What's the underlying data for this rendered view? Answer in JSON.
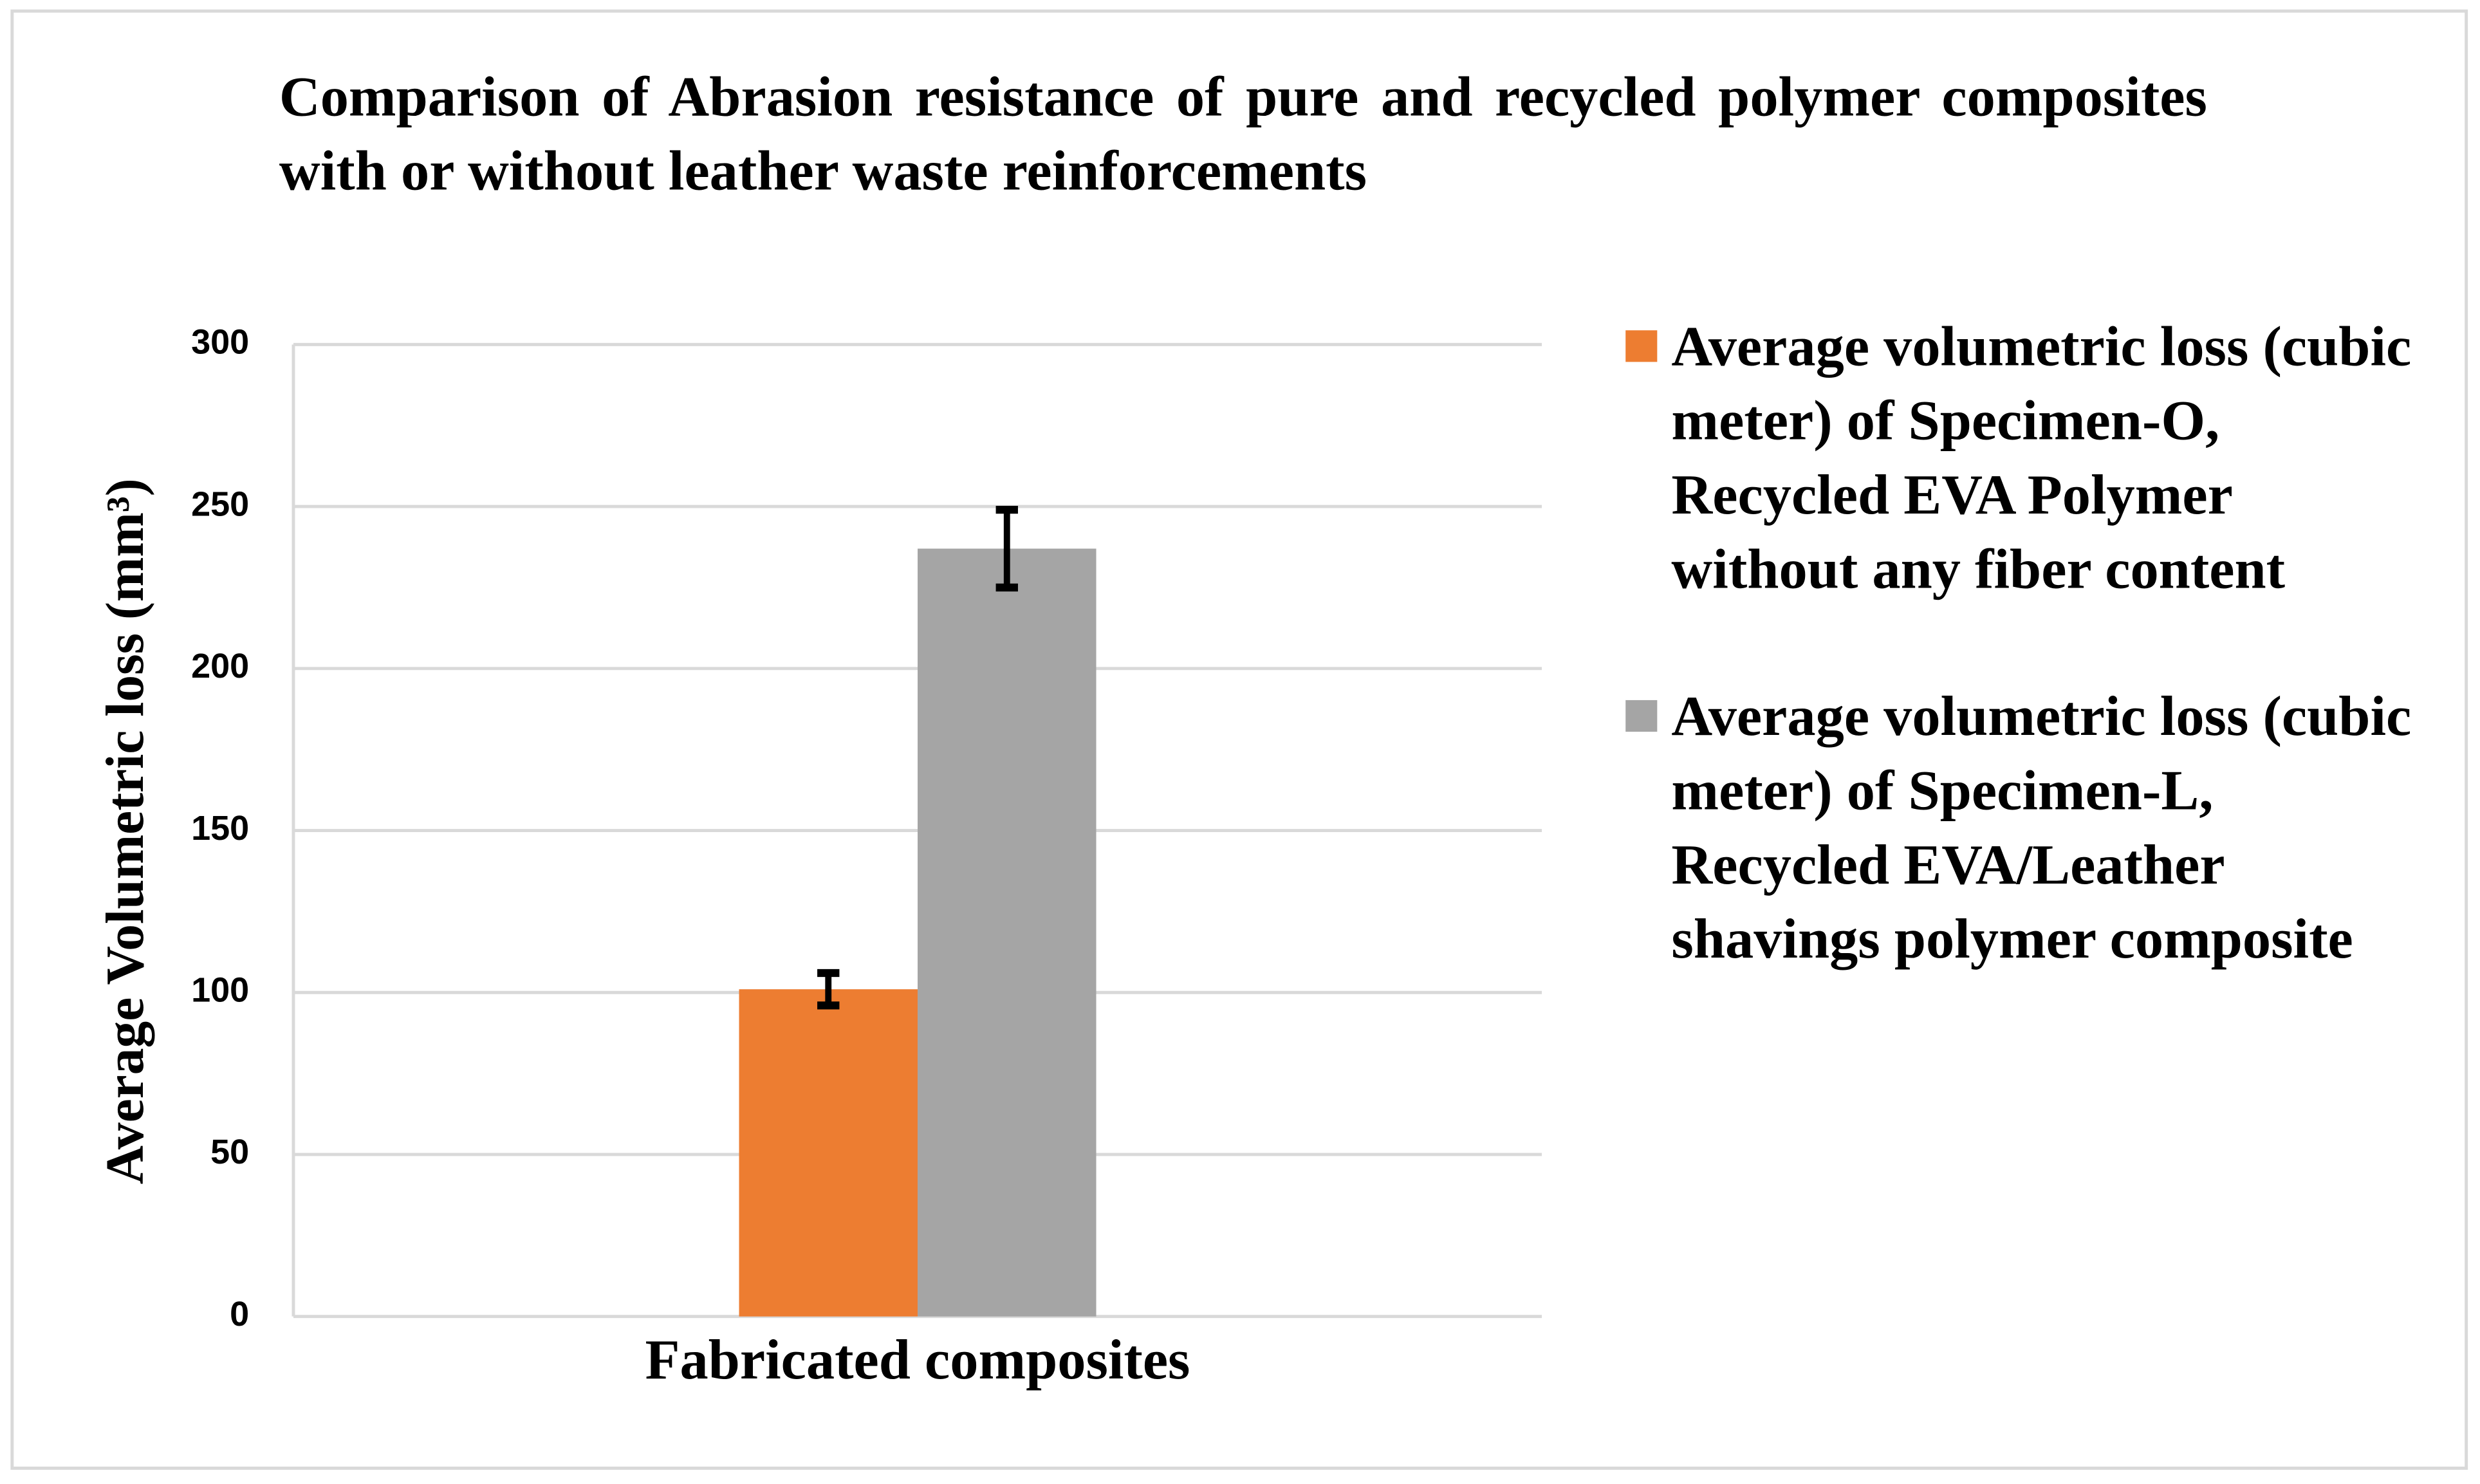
{
  "chart_data": {
    "type": "bar",
    "title": "Comparison of Abrasion resistance of pure and recycled polymer composites with or without leather waste reinforcements",
    "y_label": "Average Volumetric loss (mm³)",
    "categories": [
      "Fabricated composites"
    ],
    "series": [
      {
        "name": "Average volumetric loss (cubic meter) of Specimen-O, Recycled EVA Polymer without any fiber content",
        "color": "#ed7d31",
        "values": [
          101
        ],
        "errors": [
          5
        ]
      },
      {
        "name": "Average volumetric loss (cubic meter) of Specimen-L, Recycled EVA/Leather shavings polymer composite",
        "color": "#a5a5a5",
        "values": [
          237
        ],
        "errors": [
          12
        ]
      }
    ],
    "ylim": [
      0,
      300
    ],
    "yticks": [
      0,
      50,
      100,
      150,
      200,
      250,
      300
    ],
    "grid": true,
    "legend": "right"
  }
}
